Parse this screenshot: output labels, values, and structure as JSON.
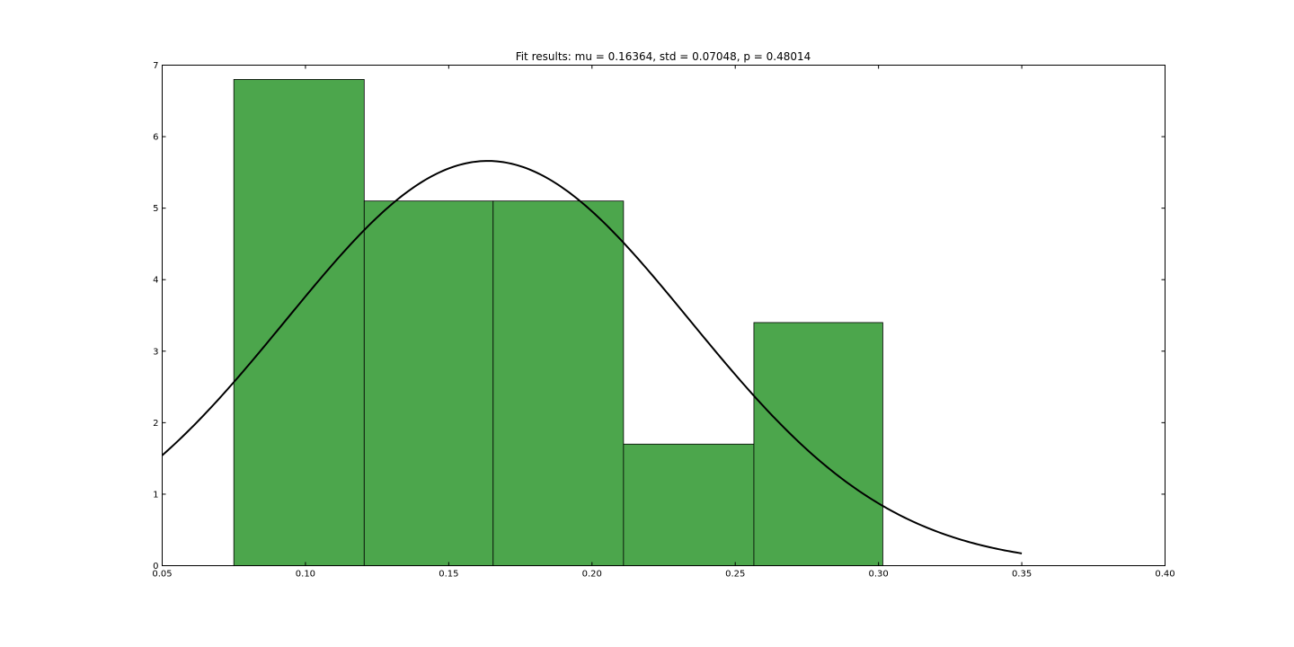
{
  "chart_data": {
    "type": "bar",
    "title": "Fit results: mu = 0.16364,  std = 0.07048, p = 0.48014",
    "xlabel": "",
    "ylabel": "",
    "xlim": [
      0.05,
      0.4
    ],
    "ylim": [
      0,
      7
    ],
    "x_ticks": [
      0.05,
      0.1,
      0.15,
      0.2,
      0.25,
      0.3,
      0.35,
      0.4
    ],
    "x_tick_labels": [
      "0.05",
      "0.10",
      "0.15",
      "0.20",
      "0.25",
      "0.30",
      "0.35",
      "0.40"
    ],
    "y_ticks": [
      0,
      1,
      2,
      3,
      4,
      5,
      6,
      7
    ],
    "y_tick_labels": [
      "0",
      "1",
      "2",
      "3",
      "4",
      "5",
      "6",
      "7"
    ],
    "grid": false,
    "histogram": {
      "bin_edges": [
        0.075,
        0.1205,
        0.1655,
        0.211,
        0.2565,
        0.3015
      ],
      "values": [
        6.8,
        5.1,
        5.1,
        1.7,
        3.4
      ],
      "color": "#4ca64c"
    },
    "fit_curve": {
      "distribution": "normal",
      "mu": 0.16364,
      "std": 0.07048,
      "x_range": [
        0.05,
        0.35
      ],
      "color": "#000000"
    }
  }
}
